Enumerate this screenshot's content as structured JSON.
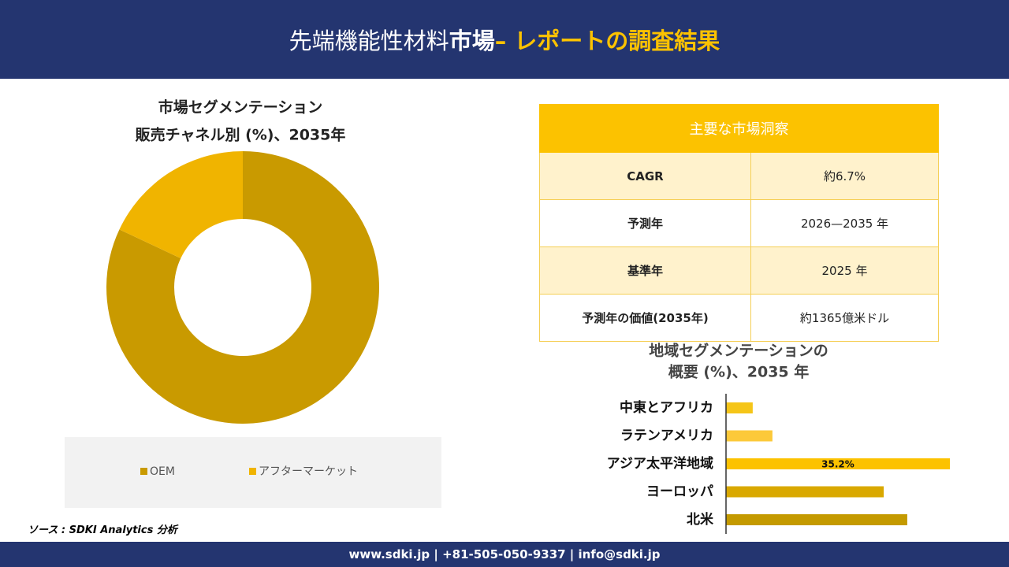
{
  "header": {
    "title_parts": [
      "先端機能性材料",
      "市場",
      " – レポートの調査結果"
    ]
  },
  "chart_data": [
    {
      "type": "pie",
      "title_lines": [
        "市場セグメンテーション",
        "販売チャネル別 (%)、2035年"
      ],
      "categories": [
        "OEM",
        "アフターマーケット"
      ],
      "values": [
        82,
        18
      ],
      "colors": [
        "#c99a00",
        "#f0b400"
      ],
      "hole": true
    },
    {
      "type": "hbar",
      "title_lines": [
        "地域セグメンテーションの",
        "概要 (%)、2035 年"
      ],
      "categories": [
        "中東とアフリカ",
        "ラテンアメリカ",
        "アジア太平洋地域",
        "ヨーロッパ",
        "北米"
      ],
      "values": [
        4.2,
        7.3,
        35.2,
        24.8,
        28.5
      ],
      "value_labels": [
        null,
        null,
        "35.2%",
        null,
        null
      ],
      "colors": [
        "#f5c518",
        "#fcc93a",
        "#fcc200",
        "#d9a800",
        "#c49a00"
      ]
    }
  ],
  "table": {
    "title": "主要な市場洞察",
    "rows": [
      [
        "CAGR",
        "約6.7%"
      ],
      [
        "予測年",
        "2026—2035 年"
      ],
      [
        "基準年",
        "2025 年"
      ],
      [
        "予測年の価値(2035年)",
        "約1365億米ドル"
      ]
    ]
  },
  "source": "ソース : SDKI Analytics 分析",
  "footer": "www.sdki.jp | +81-505-050-9337 | info@sdki.jp"
}
